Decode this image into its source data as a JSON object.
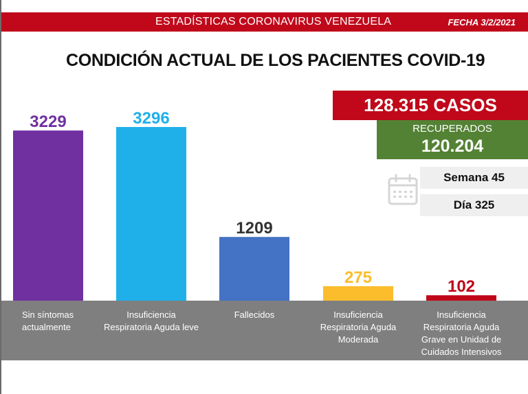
{
  "header": {
    "title": "ESTADÍSTICAS CORONAVIRUS VENEZUELA",
    "date": "FECHA 3/2/2021"
  },
  "main_title": "CONDICIÓN ACTUAL DE LOS PACIENTES COVID-19",
  "summary": {
    "cases": "128.315 CASOS",
    "recovered_label": "RECUPERADOS",
    "recovered_value": "120.204",
    "week": "Semana 45",
    "day": "Día 325",
    "icon": "calendar-icon"
  },
  "colors": {
    "banner_red": "#c0081a",
    "recovered_green": "#548235",
    "label_band_gray": "#7f7f7f"
  },
  "chart_data": {
    "type": "bar",
    "title": "CONDICIÓN ACTUAL DE LOS PACIENTES COVID-19",
    "xlabel": "",
    "ylabel": "",
    "ylim": [
      0,
      3296
    ],
    "grid": false,
    "legend": "none",
    "categories": [
      "Sin síntomas actualmente",
      "Insuficiencia Respiratoria Aguda leve",
      "Fallecidos",
      "Insuficiencia Respiratoria Aguda Moderada",
      "Insuficiencia Respiratoria Aguda Grave en Unidad de Cuidados Intensivos"
    ],
    "category_label_lines": [
      [
        "Sin síntomas",
        "actualmente"
      ],
      [
        "Insuficiencia",
        "Respiratoria Aguda leve"
      ],
      [
        "Fallecidos"
      ],
      [
        "Insuficiencia",
        "Respiratoria Aguda",
        "Moderada"
      ],
      [
        "Insuficiencia",
        "Respiratoria Aguda",
        "Grave en Unidad de",
        "Cuidados Intensivos"
      ]
    ],
    "values": [
      3229,
      3296,
      1209,
      275,
      102
    ],
    "data_labels": [
      "3229",
      "3296",
      "1209",
      "275",
      "102"
    ],
    "bar_colors": [
      "#7030a0",
      "#1fb0ea",
      "#4472c4",
      "#fbbd2c",
      "#c00618"
    ],
    "label_colors": [
      "#7030a0",
      "#1fb0ea",
      "#333333",
      "#fbbd2c",
      "#c00618"
    ]
  }
}
